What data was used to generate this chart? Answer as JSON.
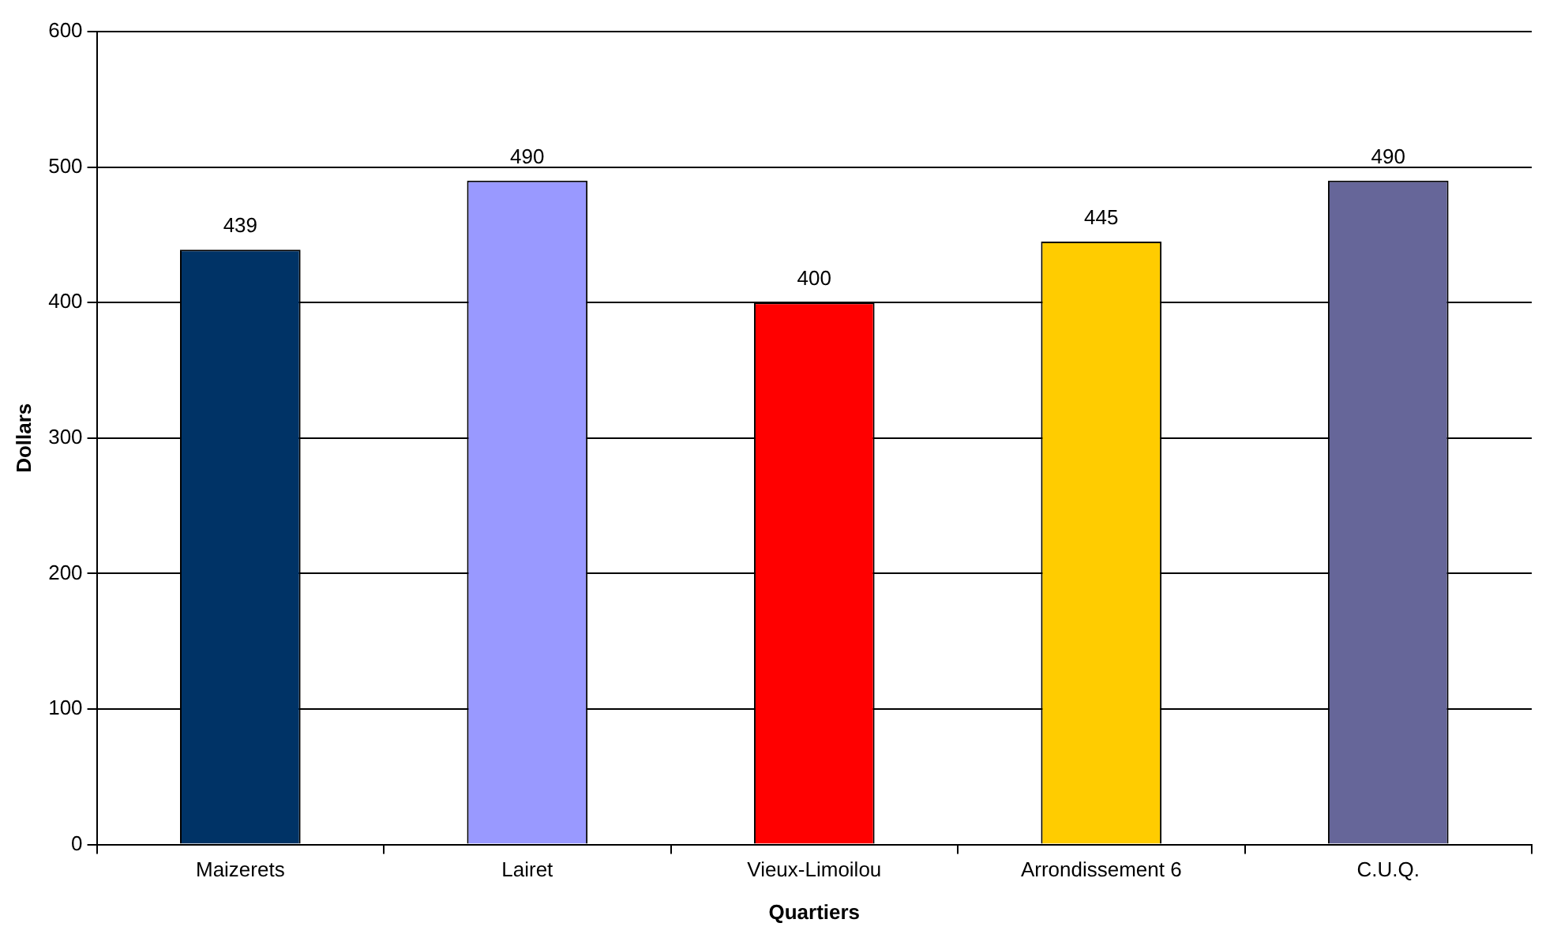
{
  "chart_data": {
    "type": "bar",
    "xlabel": "Quartiers",
    "ylabel": "Dollars",
    "categories": [
      "Maizerets",
      "Lairet",
      "Vieux-Limoilou",
      "Arrondissement 6",
      "C.U.Q."
    ],
    "values": [
      439,
      490,
      400,
      445,
      490
    ],
    "colors": [
      "#003366",
      "#9999ff",
      "#ff0000",
      "#ffcc00",
      "#666699"
    ],
    "ylim": [
      0,
      600
    ],
    "yticks": [
      0,
      100,
      200,
      300,
      400,
      500,
      600
    ],
    "grid": "y",
    "data_labels": true,
    "legend": false
  }
}
